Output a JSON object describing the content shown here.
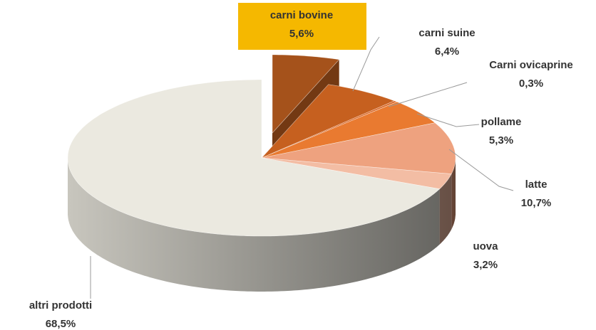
{
  "chart_data": {
    "type": "pie",
    "categories": [
      "carni bovine",
      "carni suine",
      "Carni ovicaprine",
      "pollame",
      "latte",
      "uova",
      "altri prodotti"
    ],
    "values": [
      5.6,
      6.4,
      0.3,
      5.3,
      10.7,
      3.2,
      68.5
    ],
    "value_labels": [
      "5,6%",
      "6,4%",
      "0,3%",
      "5,3%",
      "10,7%",
      "3,2%",
      "68,5%"
    ],
    "colors": [
      "#a5521b",
      "#c6601f",
      "#d9692a",
      "#e97a30",
      "#eea27f",
      "#f3bda4",
      "#ebe9e0"
    ]
  }
}
